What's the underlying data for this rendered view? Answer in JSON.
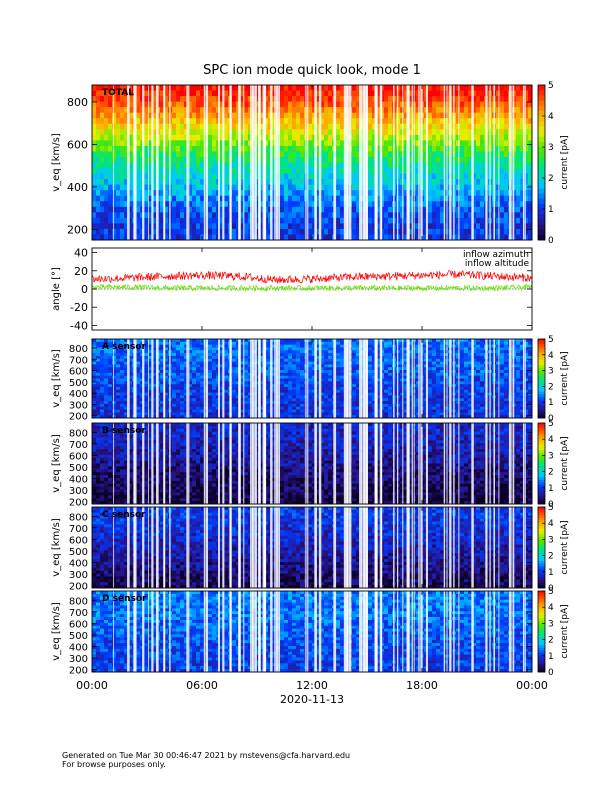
{
  "chart_data": {
    "type": "heatmap",
    "title": "SPC ion mode quick look, mode 1",
    "x_axis": {
      "ticks": [
        "00:00",
        "06:00",
        "12:00",
        "18:00",
        "00:00"
      ],
      "date_label": "2020-11-13",
      "range_hours": [
        0,
        24
      ]
    },
    "panels": [
      {
        "id": "total",
        "type": "heatmap",
        "label": "TOTAL",
        "ylabel": "v_eq [km/s]",
        "ylim": [
          150,
          880
        ],
        "yticks": [
          200,
          400,
          600,
          800
        ],
        "colorbar": {
          "label": "current [pA]",
          "ticks": [
            0,
            1,
            2,
            3,
            4,
            5
          ],
          "range": [
            0,
            5
          ],
          "scale": "log"
        },
        "description_profile": [
          {
            "v_eq": 220,
            "current_pA": 1.0
          },
          {
            "v_eq": 300,
            "current_pA": 1.2
          },
          {
            "v_eq": 400,
            "current_pA": 1.7
          },
          {
            "v_eq": 500,
            "current_pA": 2.2
          },
          {
            "v_eq": 600,
            "current_pA": 3.0
          },
          {
            "v_eq": 700,
            "current_pA": 3.8
          },
          {
            "v_eq": 800,
            "current_pA": 4.6
          },
          {
            "v_eq": 870,
            "current_pA": 5.0
          }
        ]
      },
      {
        "id": "angle",
        "type": "line",
        "ylabel": "angle [°]",
        "ylim": [
          -45,
          45
        ],
        "yticks": [
          -40,
          -20,
          0,
          20,
          40
        ],
        "series": [
          {
            "name": "inflow azimuth",
            "color": "#ff0000",
            "x": [
              0,
              2,
              4,
              6,
              8,
              10,
              12,
              14,
              16,
              18,
              20,
              22,
              24
            ],
            "y": [
              11,
              12,
              14,
              15,
              14,
              10,
              11,
              13,
              14,
              15,
              16,
              14,
              12
            ]
          },
          {
            "name": "inflow altitude",
            "color": "#66e000",
            "x": [
              0,
              2,
              4,
              6,
              8,
              10,
              12,
              14,
              16,
              18,
              20,
              22,
              24
            ],
            "y": [
              2,
              2,
              1,
              1,
              1,
              1,
              1,
              1,
              1,
              1,
              1,
              1,
              2
            ]
          }
        ]
      },
      {
        "id": "a",
        "type": "heatmap",
        "label": "A sensor",
        "ylabel": "v_eq [km/s]",
        "ylim": [
          180,
          880
        ],
        "yticks": [
          200,
          300,
          400,
          500,
          600,
          700,
          800
        ],
        "colorbar": {
          "label": "current [pA]",
          "ticks": [
            0,
            1,
            2,
            3,
            4,
            5
          ],
          "range": [
            0,
            5
          ]
        },
        "description_profile": [
          {
            "v_eq": 200,
            "current_pA": 0.9
          },
          {
            "v_eq": 400,
            "current_pA": 1.0
          },
          {
            "v_eq": 600,
            "current_pA": 1.2
          },
          {
            "v_eq": 800,
            "current_pA": 1.3
          }
        ]
      },
      {
        "id": "b",
        "type": "heatmap",
        "label": "B sensor",
        "ylabel": "v_eq [km/s]",
        "ylim": [
          180,
          880
        ],
        "yticks": [
          200,
          300,
          400,
          500,
          600,
          700,
          800
        ],
        "colorbar": {
          "label": "current [pA]",
          "ticks": [
            0,
            1,
            2,
            3,
            4,
            5
          ],
          "range": [
            0,
            5
          ]
        },
        "description_profile": [
          {
            "v_eq": 200,
            "current_pA": 0.1
          },
          {
            "v_eq": 400,
            "current_pA": 0.3
          },
          {
            "v_eq": 600,
            "current_pA": 0.6
          },
          {
            "v_eq": 800,
            "current_pA": 0.8
          }
        ]
      },
      {
        "id": "c",
        "type": "heatmap",
        "label": "C sensor",
        "ylabel": "v_eq [km/s]",
        "ylim": [
          180,
          880
        ],
        "yticks": [
          200,
          300,
          400,
          500,
          600,
          700,
          800
        ],
        "colorbar": {
          "label": "current [pA]",
          "ticks": [
            0,
            1,
            2,
            3,
            4,
            5
          ],
          "range": [
            0,
            5
          ]
        },
        "description_profile": [
          {
            "v_eq": 200,
            "current_pA": 0.2
          },
          {
            "v_eq": 400,
            "current_pA": 0.5
          },
          {
            "v_eq": 600,
            "current_pA": 0.8
          },
          {
            "v_eq": 800,
            "current_pA": 1.0
          }
        ]
      },
      {
        "id": "d",
        "type": "heatmap",
        "label": "D sensor",
        "ylabel": "v_eq [km/s]",
        "ylim": [
          180,
          880
        ],
        "yticks": [
          200,
          300,
          400,
          500,
          600,
          700,
          800
        ],
        "colorbar": {
          "label": "current [pA]",
          "ticks": [
            0,
            1,
            2,
            3,
            4,
            5
          ],
          "range": [
            0,
            5
          ]
        },
        "description_profile": [
          {
            "v_eq": 200,
            "current_pA": 1.0
          },
          {
            "v_eq": 400,
            "current_pA": 1.1
          },
          {
            "v_eq": 600,
            "current_pA": 1.3
          },
          {
            "v_eq": 800,
            "current_pA": 1.4
          }
        ]
      }
    ]
  },
  "footer": {
    "line1": "Generated on Tue Mar 30 00:46:47 2021 by mstevens@cfa.harvard.edu",
    "line2": "For browse purposes only."
  }
}
